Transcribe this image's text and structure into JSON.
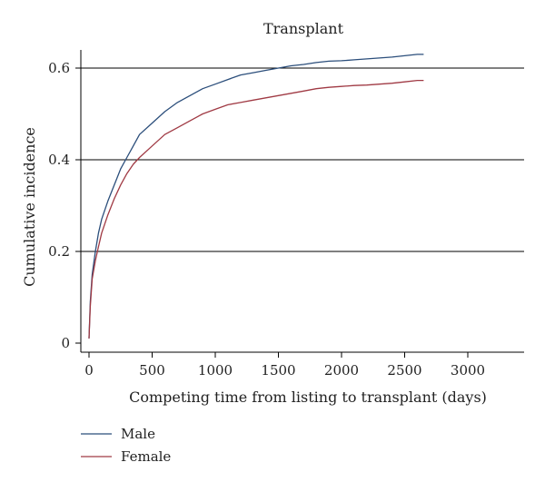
{
  "chart_data": {
    "type": "line",
    "title": "Transplant",
    "xlabel": "Competing time from listing to transplant (days)",
    "ylabel": "Cumulative incidence",
    "xlim": [
      0,
      3500
    ],
    "ylim": [
      0,
      0.6
    ],
    "x_ticks": [
      "0",
      "500",
      "1000",
      "1500",
      "2000",
      "2500",
      "3000"
    ],
    "y_ticks": [
      "0",
      "0.2",
      "0.4",
      "0.6"
    ],
    "grid": "horizontal",
    "legend_position": "bottom-left",
    "series": [
      {
        "name": "Male",
        "color": "#2b4e7b",
        "x": [
          0,
          10,
          25,
          50,
          75,
          100,
          150,
          200,
          250,
          300,
          350,
          400,
          500,
          600,
          700,
          800,
          900,
          1000,
          1100,
          1200,
          1300,
          1400,
          1500,
          1600,
          1700,
          1800,
          1900,
          2000,
          2100,
          2200,
          2300,
          2400,
          2500,
          2600,
          2650
        ],
        "y": [
          0.01,
          0.09,
          0.15,
          0.2,
          0.24,
          0.27,
          0.31,
          0.345,
          0.38,
          0.405,
          0.43,
          0.455,
          0.48,
          0.505,
          0.525,
          0.54,
          0.555,
          0.565,
          0.575,
          0.585,
          0.59,
          0.595,
          0.6,
          0.605,
          0.608,
          0.612,
          0.615,
          0.616,
          0.618,
          0.62,
          0.622,
          0.624,
          0.627,
          0.63,
          0.63
        ]
      },
      {
        "name": "Female",
        "color": "#a03a44",
        "x": [
          0,
          10,
          25,
          50,
          75,
          100,
          150,
          200,
          250,
          300,
          350,
          400,
          500,
          600,
          700,
          800,
          900,
          1000,
          1100,
          1200,
          1300,
          1400,
          1500,
          1600,
          1700,
          1800,
          1900,
          2000,
          2100,
          2200,
          2300,
          2400,
          2500,
          2600,
          2650
        ],
        "y": [
          0.01,
          0.08,
          0.14,
          0.18,
          0.21,
          0.24,
          0.28,
          0.315,
          0.345,
          0.37,
          0.39,
          0.405,
          0.43,
          0.455,
          0.47,
          0.485,
          0.5,
          0.51,
          0.52,
          0.525,
          0.53,
          0.535,
          0.54,
          0.545,
          0.55,
          0.555,
          0.558,
          0.56,
          0.562,
          0.563,
          0.565,
          0.567,
          0.57,
          0.573,
          0.573
        ]
      }
    ]
  }
}
